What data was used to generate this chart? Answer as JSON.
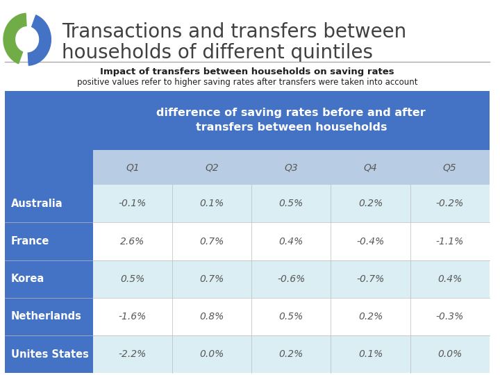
{
  "title_line1": "Transactions and transfers between",
  "title_line2": "households of different quintiles",
  "subtitle_bold": "Impact of transfers between households on saving rates",
  "subtitle_normal": "positive values refer to higher saving rates after transfers were taken into account",
  "col_header": "difference of saving rates before and after\ntransfers between households",
  "quintiles": [
    "Q1",
    "Q2",
    "Q3",
    "Q4",
    "Q5"
  ],
  "countries": [
    "Australia",
    "France",
    "Korea",
    "Netherlands",
    "Unites States"
  ],
  "data": [
    [
      "-0.1%",
      "0.1%",
      "0.5%",
      "0.2%",
      "-0.2%"
    ],
    [
      "2.6%",
      "0.7%",
      "0.4%",
      "-0.4%",
      "-1.1%"
    ],
    [
      "0.5%",
      "0.7%",
      "-0.6%",
      "-0.7%",
      "0.4%"
    ],
    [
      "-1.6%",
      "0.8%",
      "0.5%",
      "0.2%",
      "-0.3%"
    ],
    [
      "-2.2%",
      "0.0%",
      "0.2%",
      "0.1%",
      "0.0%"
    ]
  ],
  "header_bg": "#4472C4",
  "subheader_bg": "#B8CCE4",
  "row_bg_dark": "#DAEEF3",
  "row_bg_light": "#FFFFFF",
  "country_col_bg": "#4472C4",
  "title_color": "#404040",
  "header_text_color": "#FFFFFF",
  "country_text_color": "#FFFFFF",
  "data_text_color": "#595959",
  "quintile_text_color": "#595959",
  "logo_color_green": "#70AD47",
  "logo_color_blue": "#4472C4",
  "separator_color": "#AAAAAA",
  "background_color": "#FFFFFF"
}
